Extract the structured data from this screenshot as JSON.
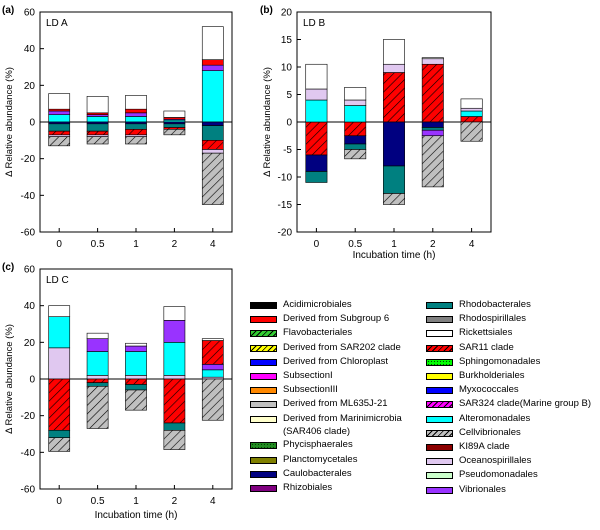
{
  "chart_data": [
    {
      "type": "stacked_bar",
      "panel": "(a)",
      "title": "LD A",
      "ylabel": "Δ Relative abundance (%)",
      "xlabel": "",
      "categories": [
        "0",
        "0.5",
        "1",
        "2",
        "4"
      ],
      "ylim": [
        -60,
        60
      ],
      "yticks": [
        -60,
        -40,
        -20,
        0,
        20,
        40,
        60
      ],
      "series": [
        {
          "name": "Alteromonadales",
          "values": [
            4,
            3,
            3,
            1,
            28
          ]
        },
        {
          "name": "Vibrionales",
          "values": [
            2,
            1,
            2,
            0.5,
            3
          ]
        },
        {
          "name": "Derived from Subgroup 6",
          "values": [
            1,
            1,
            2,
            1,
            3
          ]
        },
        {
          "name": "Caulobacterales",
          "values": [
            -1,
            -1,
            -1,
            -1,
            -2
          ]
        },
        {
          "name": "Rhodobacterales",
          "values": [
            -4,
            -4,
            -3,
            -2,
            -8
          ]
        },
        {
          "name": "SAR11 clade",
          "values": [
            -2,
            -2,
            -3,
            -1,
            -5
          ]
        },
        {
          "name": "Oceanospirillales",
          "values": [
            -1,
            -1,
            -1,
            0,
            -2
          ]
        }
      ],
      "totals_positive": [
        15.5,
        14,
        14.5,
        6,
        52
      ],
      "totals_negative": [
        -13,
        -12,
        -12,
        -7,
        -45
      ]
    },
    {
      "type": "stacked_bar",
      "panel": "(b)",
      "title": "LD B",
      "ylabel": "Δ Relative abundance (%)",
      "xlabel": "Incubation time (h)",
      "categories": [
        "0",
        "0.5",
        "1",
        "2",
        "4"
      ],
      "ylim": [
        -20,
        20
      ],
      "yticks": [
        -20,
        -15,
        -10,
        -5,
        0,
        5,
        10,
        15,
        20
      ],
      "series": [
        {
          "name": "SAR11 clade",
          "values": [
            -6,
            -2.5,
            9,
            10.5,
            1
          ]
        },
        {
          "name": "Alteromonadales",
          "values": [
            4,
            3,
            0,
            0,
            1
          ]
        },
        {
          "name": "Caulobacterales",
          "values": [
            -3,
            -1.5,
            -8,
            -1,
            0
          ]
        },
        {
          "name": "Rhodobacterales",
          "values": [
            -2,
            -1,
            -5,
            -0.5,
            0
          ]
        },
        {
          "name": "Oceanospirillales",
          "values": [
            2,
            1,
            1.5,
            1,
            0.5
          ]
        },
        {
          "name": "Vibrionales",
          "values": [
            0,
            0,
            0,
            -1,
            0
          ]
        }
      ],
      "totals_positive": [
        10.5,
        6.3,
        15,
        11.7,
        4.2
      ],
      "totals_negative": [
        -11,
        -6.7,
        -15,
        -11.8,
        -3.5
      ]
    },
    {
      "type": "stacked_bar",
      "panel": "(c)",
      "title": "LD C",
      "ylabel": "Δ Relative abundance (%)",
      "xlabel": "Incubation time (h)",
      "categories": [
        "0",
        "0.5",
        "1",
        "2",
        "4"
      ],
      "ylim": [
        -60,
        60
      ],
      "yticks": [
        -60,
        -40,
        -20,
        0,
        20,
        40,
        60
      ],
      "series": [
        {
          "name": "Oceanospirillales",
          "values": [
            17,
            2,
            2,
            2,
            1
          ]
        },
        {
          "name": "Alteromonadales",
          "values": [
            17,
            13,
            13,
            18,
            4
          ]
        },
        {
          "name": "Vibrionales",
          "values": [
            0,
            7,
            3,
            12,
            3
          ]
        },
        {
          "name": "SAR11 clade",
          "values": [
            -28,
            -2,
            -3,
            -24,
            13
          ]
        },
        {
          "name": "Rhodobacterales",
          "values": [
            -4,
            -2,
            -3,
            -4,
            0
          ]
        }
      ],
      "totals_positive": [
        40,
        25,
        19.5,
        39.5,
        22
      ],
      "totals_negative": [
        -39.5,
        -27,
        -17,
        -38.5,
        -22.5
      ]
    }
  ],
  "legend": {
    "column1": [
      {
        "label": "Acidimicrobiales",
        "color": "#000000",
        "pattern": "solid"
      },
      {
        "label": "Derived from Subgroup 6",
        "color": "#ff0000",
        "pattern": "solid"
      },
      {
        "label": "Flavobacteriales",
        "color": "#33cc33",
        "pattern": "hatch"
      },
      {
        "label": "Derived from SAR202 clade",
        "color": "#ffff00",
        "pattern": "hatch"
      },
      {
        "label": "Derived from Chloroplast",
        "color": "#0000ff",
        "pattern": "solid"
      },
      {
        "label": "SubsectionI",
        "color": "#ff00ff",
        "pattern": "solid"
      },
      {
        "label": "SubsectionIII",
        "color": "#ff8800",
        "pattern": "solid"
      },
      {
        "label": "Derived from ML635J-21",
        "color": "#c0c0c0",
        "pattern": "solid"
      },
      {
        "label": "Derived from Marinimicrobia",
        "label2": "(SAR406 clade)",
        "color": "#ffffcc",
        "pattern": "solid"
      },
      {
        "label": "Phycisphaerales",
        "color": "#228b22",
        "pattern": "dots"
      },
      {
        "label": "Planctomycetales",
        "color": "#808000",
        "pattern": "solid"
      },
      {
        "label": "Caulobacterales",
        "color": "#000080",
        "pattern": "solid"
      },
      {
        "label": "Rhizobiales",
        "color": "#800080",
        "pattern": "solid"
      }
    ],
    "column2": [
      {
        "label": "Rhodobacterales",
        "color": "#008080",
        "pattern": "solid"
      },
      {
        "label": "Rhodospirillales",
        "color": "#808080",
        "pattern": "solid"
      },
      {
        "label": "Rickettsiales",
        "color": "#ffffff",
        "pattern": "solid"
      },
      {
        "label": "SAR11 clade",
        "color": "#ff0000",
        "pattern": "hatch"
      },
      {
        "label": "Sphingomonadales",
        "color": "#00ff00",
        "pattern": "dots"
      },
      {
        "label": "Burkholderiales",
        "color": "#ffff00",
        "pattern": "solid"
      },
      {
        "label": "Myxococcales",
        "color": "#0000ff",
        "pattern": "solid"
      },
      {
        "label": "SAR324 clade(Marine group B)",
        "color": "#ff00ff",
        "pattern": "hatch"
      },
      {
        "label": "Alteromonadales",
        "color": "#00ffff",
        "pattern": "solid"
      },
      {
        "label": "Cellvibrionales",
        "color": "#c0c0c0",
        "pattern": "hatch"
      },
      {
        "label": "KI89A clade",
        "color": "#8b0000",
        "pattern": "solid"
      },
      {
        "label": "Oceanospirillales",
        "color": "#e0c8f0",
        "pattern": "solid"
      },
      {
        "label": "Pseudomonadales",
        "color": "#ccffcc",
        "pattern": "solid"
      },
      {
        "label": "Vibrionales",
        "color": "#9933ff",
        "pattern": "solid"
      }
    ]
  }
}
